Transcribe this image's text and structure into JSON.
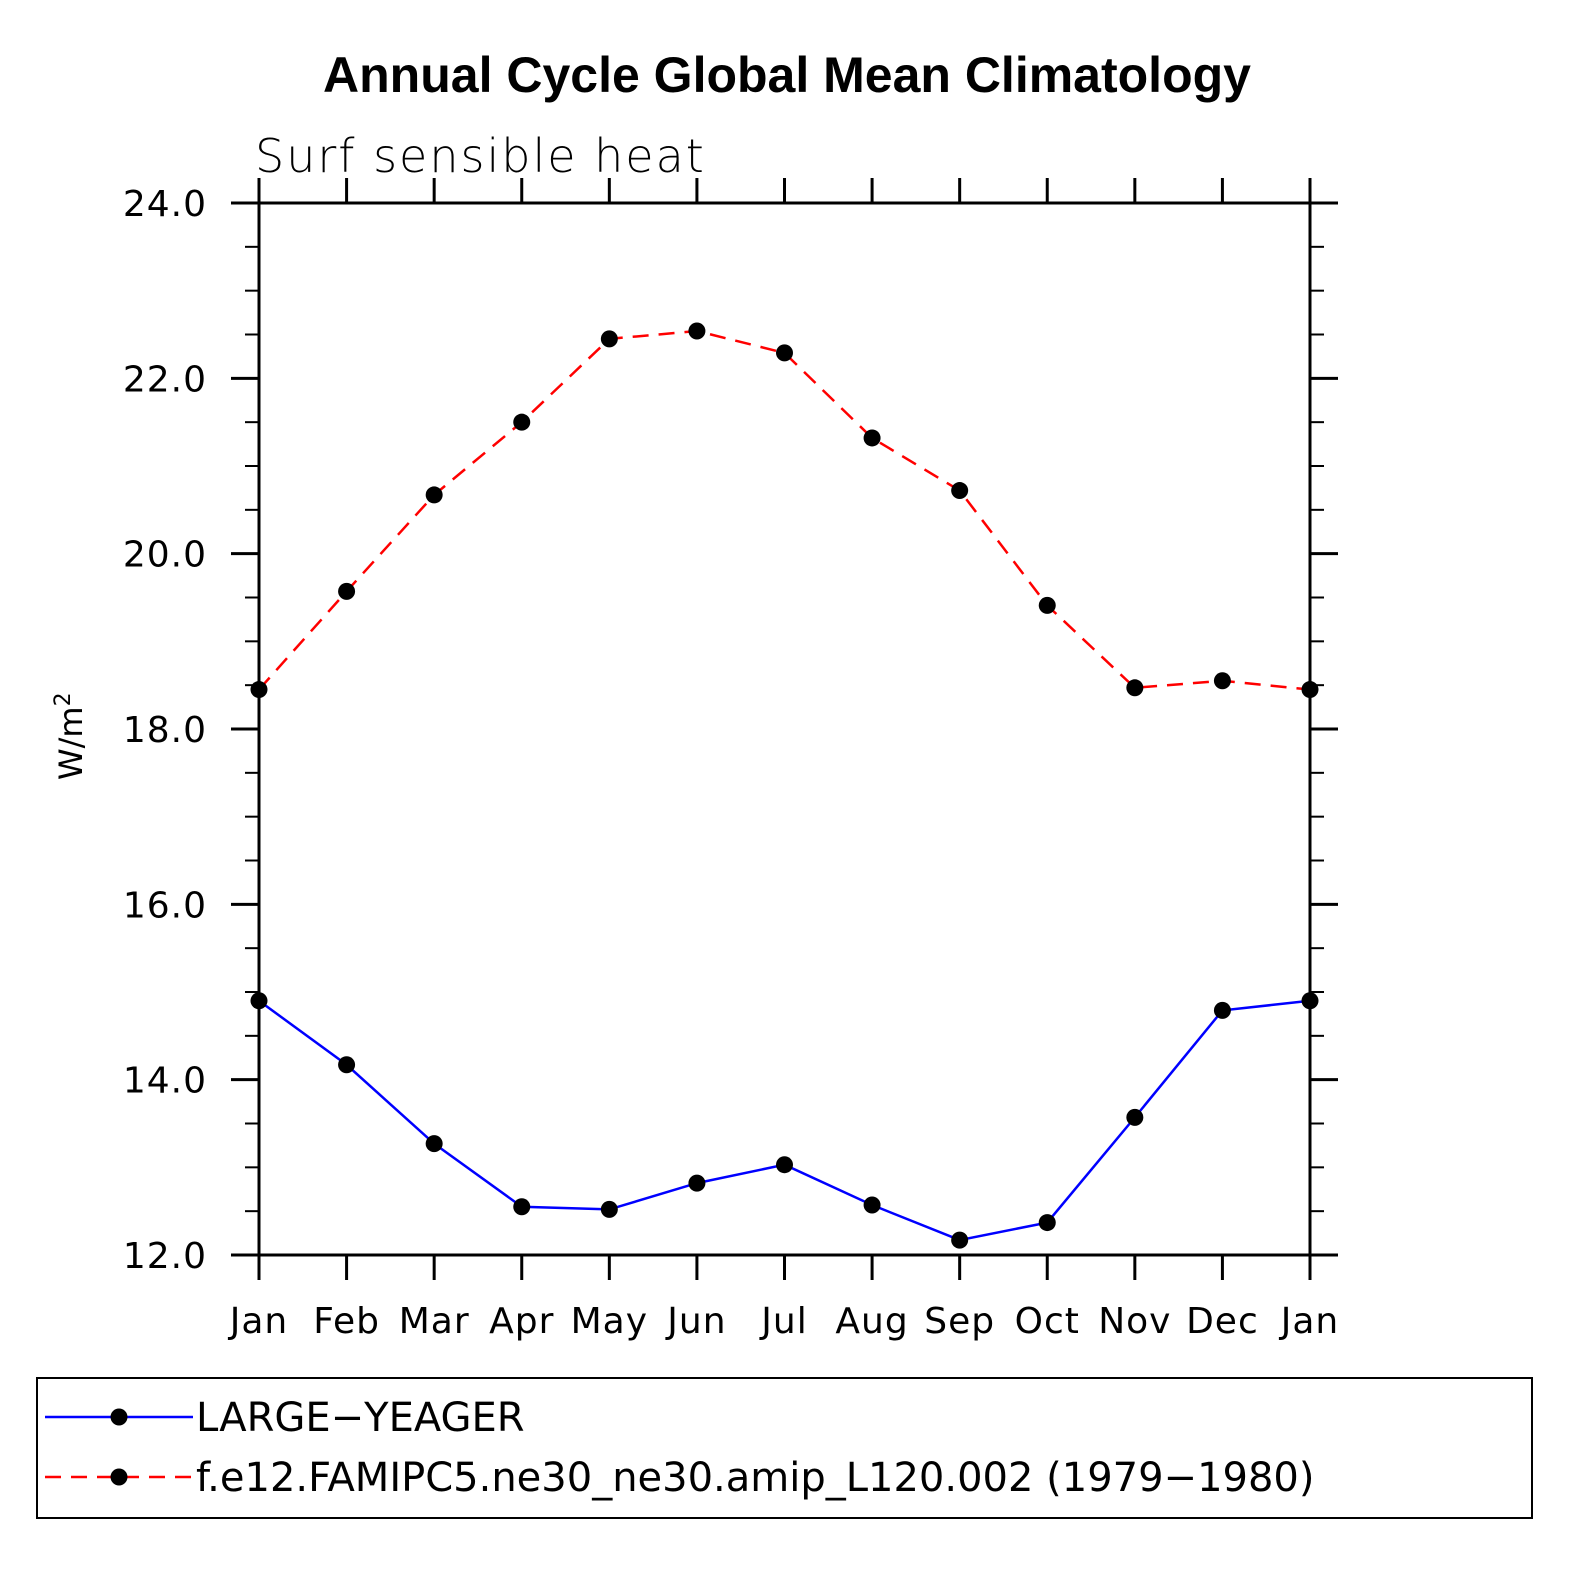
{
  "chart_data": {
    "type": "line",
    "title": "Annual Cycle Global Mean Climatology",
    "subtitle": "Surf sensible heat",
    "ylabel": "W/m",
    "ylabel_superscript": "2",
    "xlabel": "",
    "ylim": [
      12.0,
      24.0
    ],
    "yticks": [
      "12.0",
      "14.0",
      "16.0",
      "18.0",
      "20.0",
      "22.0",
      "24.0"
    ],
    "categories": [
      "Jan",
      "Feb",
      "Mar",
      "Apr",
      "May",
      "Jun",
      "Jul",
      "Aug",
      "Sep",
      "Oct",
      "Nov",
      "Dec",
      "Jan"
    ],
    "series": [
      {
        "name": "LARGE−YEAGER",
        "color": "#0000ff",
        "style": "solid",
        "values": [
          14.9,
          14.17,
          13.27,
          12.55,
          12.52,
          12.82,
          13.03,
          12.57,
          12.17,
          12.37,
          13.57,
          14.79,
          14.9
        ]
      },
      {
        "name": "f.e12.FAMIPC5.ne30_ne30.amip_L120.002 (1979−1980)",
        "color": "#ff0000",
        "style": "dashed",
        "values": [
          18.45,
          19.57,
          20.67,
          21.5,
          22.45,
          22.54,
          22.29,
          21.32,
          20.72,
          19.41,
          18.47,
          18.55,
          18.45
        ]
      }
    ],
    "grid": false,
    "legend": "bottom"
  }
}
